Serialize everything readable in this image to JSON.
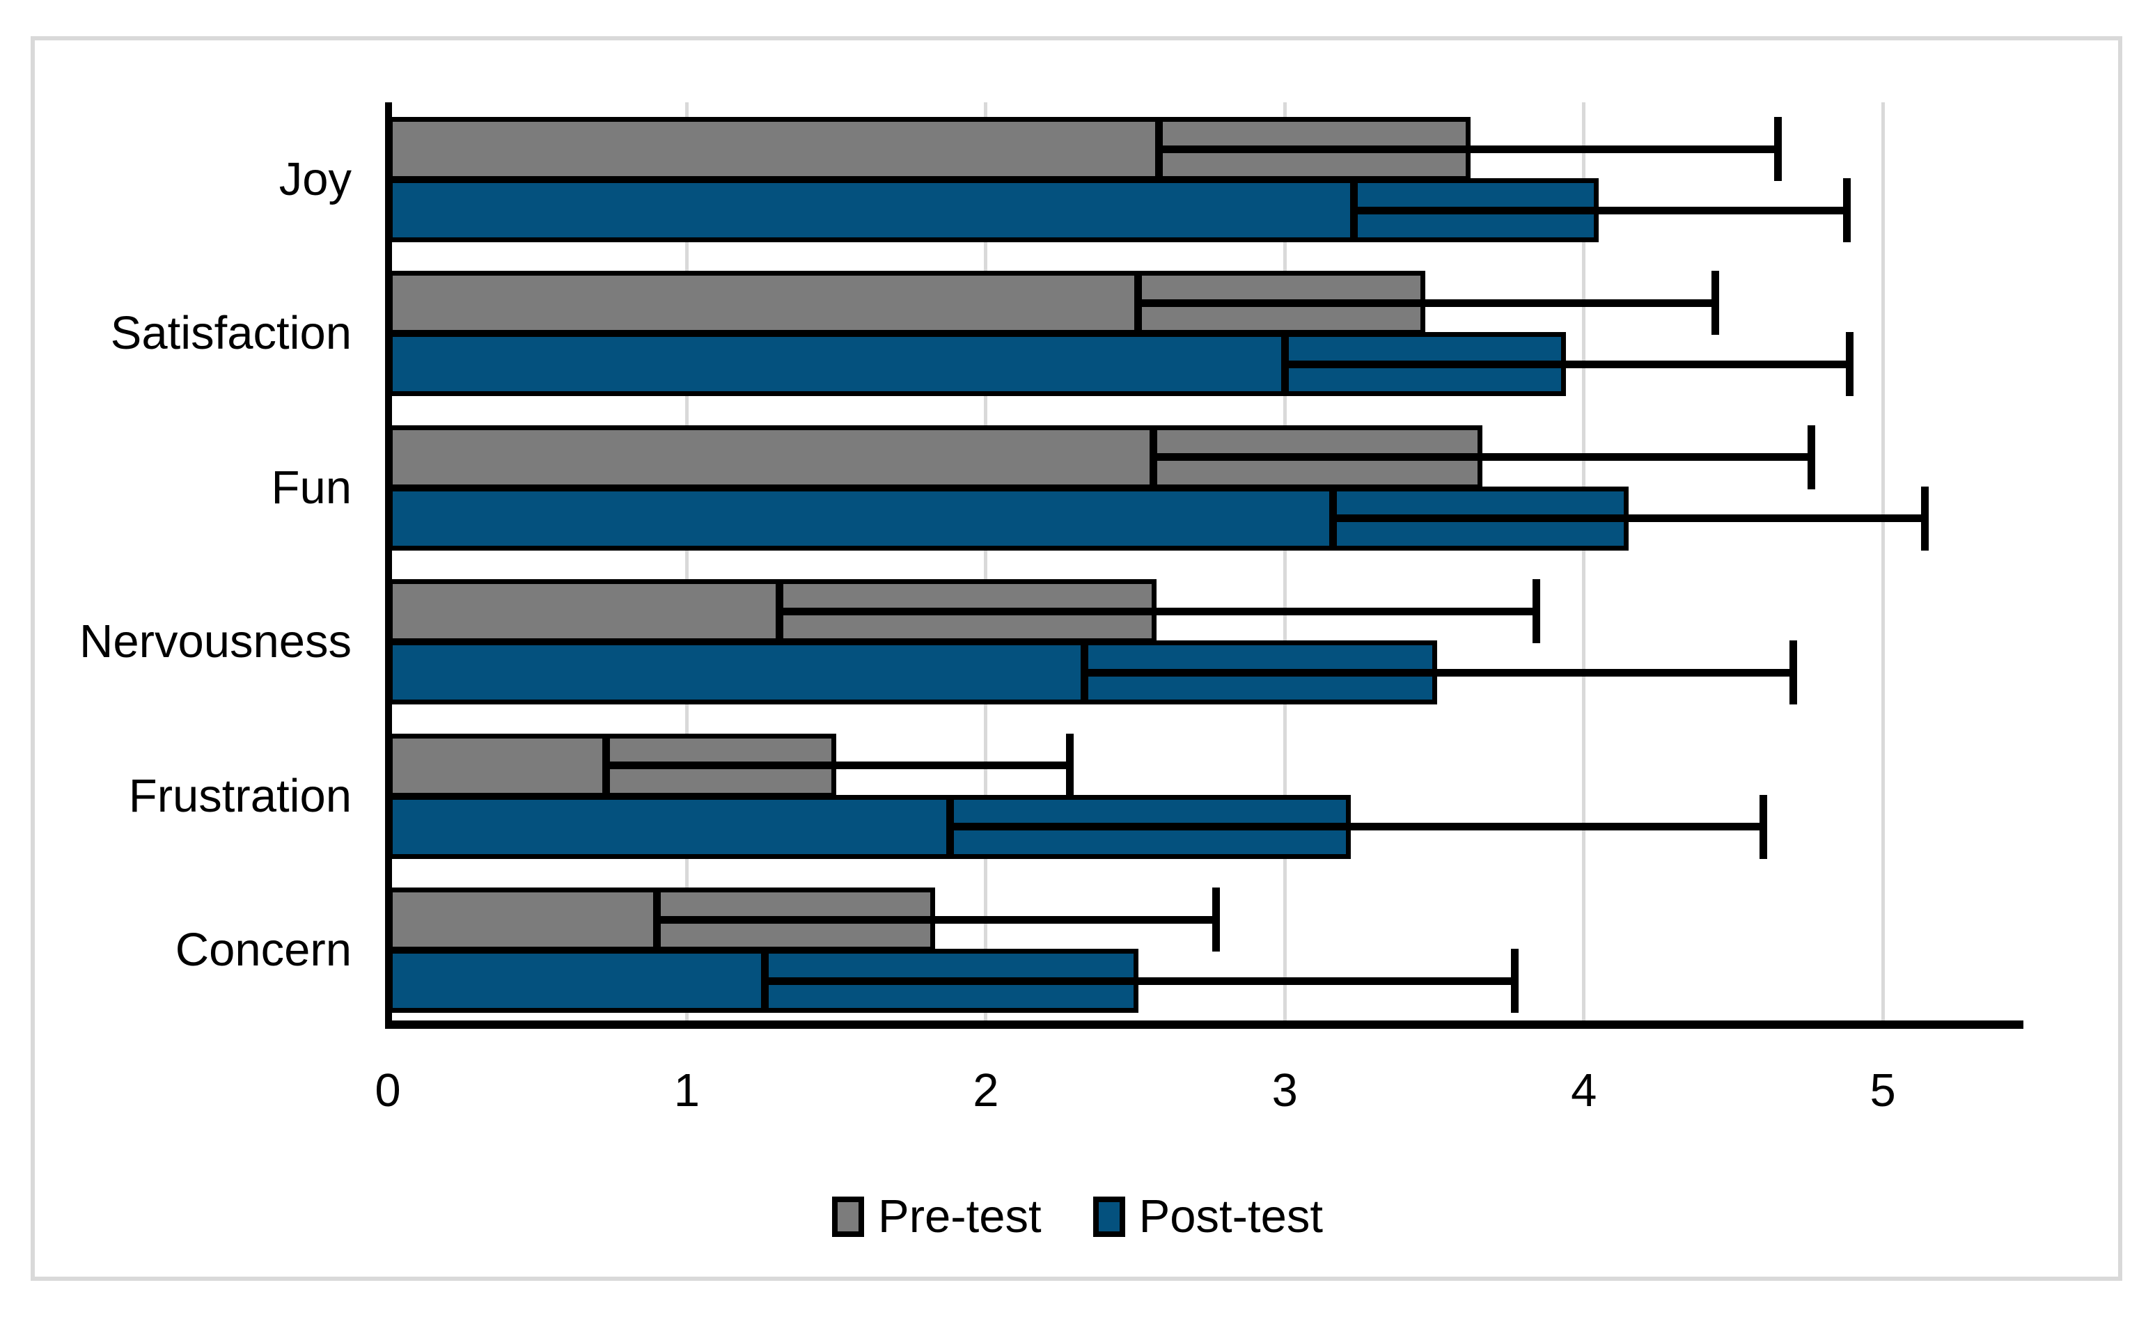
{
  "chart_data": {
    "type": "bar",
    "orientation": "horizontal",
    "title": "",
    "xlabel": "",
    "ylabel": "",
    "categories": [
      "Joy",
      "Satisfaction",
      "Fun",
      "Nervousness",
      "Frustration",
      "Concern"
    ],
    "series": [
      {
        "name": "Pre-test",
        "color": "#7C7C7C",
        "values": [
          3.62,
          3.47,
          3.66,
          2.57,
          1.5,
          1.83
        ],
        "error_low": [
          2.58,
          2.51,
          2.56,
          1.31,
          0.73,
          0.9
        ],
        "error_high": [
          4.65,
          4.44,
          4.76,
          3.84,
          2.28,
          2.77
        ]
      },
      {
        "name": "Post-test",
        "color": "#04517E",
        "values": [
          4.05,
          3.94,
          4.15,
          3.51,
          3.22,
          2.51
        ],
        "error_low": [
          3.23,
          3.0,
          3.16,
          2.33,
          1.88,
          1.26
        ],
        "error_high": [
          4.88,
          4.89,
          5.14,
          4.7,
          4.6,
          3.77
        ]
      }
    ],
    "x_ticks": [
      0,
      1,
      2,
      3,
      4,
      5
    ],
    "xlim": [
      0,
      5.47
    ],
    "grid": true,
    "grid_color": "#D9D9D9",
    "axis_color": "#000000",
    "panel_border_color": "#D9D9D9",
    "legend_position": "bottom",
    "legend_labels": [
      "Pre-test",
      "Post-test"
    ]
  }
}
